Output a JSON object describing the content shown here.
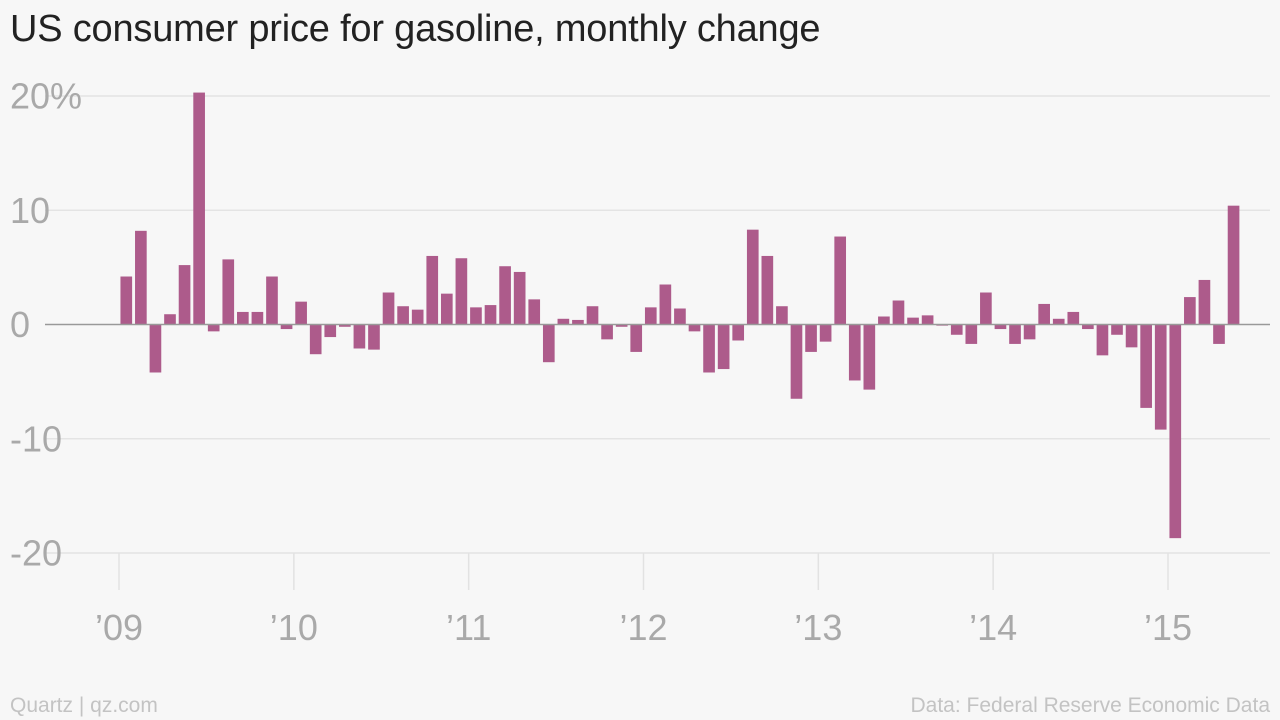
{
  "chart_data": {
    "type": "bar",
    "title": "US consumer price for gasoline, monthly change",
    "xlabel": "",
    "ylabel": "",
    "color": "#ad5b8b",
    "ylim": [
      -20,
      20
    ],
    "yticks": [
      20,
      10,
      0,
      -10,
      -20
    ],
    "ytick_labels": [
      "20%",
      "10",
      "0",
      "-10",
      "-20"
    ],
    "xticks": [
      {
        "label": "’09",
        "date": "2009-01"
      },
      {
        "label": "’10",
        "date": "2010-01"
      },
      {
        "label": "’11",
        "date": "2011-01"
      },
      {
        "label": "’12",
        "date": "2012-01"
      },
      {
        "label": "’13",
        "date": "2013-01"
      },
      {
        "label": "’14",
        "date": "2014-01"
      },
      {
        "label": "’15",
        "date": "2015-01"
      }
    ],
    "grid": true,
    "series": [
      {
        "dates": [
          "2009-01",
          "2009-02",
          "2009-03",
          "2009-04",
          "2009-05",
          "2009-06",
          "2009-07",
          "2009-08",
          "2009-09",
          "2009-10",
          "2009-11",
          "2009-12",
          "2010-01",
          "2010-02",
          "2010-03",
          "2010-04",
          "2010-05",
          "2010-06",
          "2010-07",
          "2010-08",
          "2010-09",
          "2010-10",
          "2010-11",
          "2010-12",
          "2011-01",
          "2011-02",
          "2011-03",
          "2011-04",
          "2011-05",
          "2011-06",
          "2011-07",
          "2011-08",
          "2011-09",
          "2011-10",
          "2011-11",
          "2011-12",
          "2012-01",
          "2012-02",
          "2012-03",
          "2012-04",
          "2012-05",
          "2012-06",
          "2012-07",
          "2012-08",
          "2012-09",
          "2012-10",
          "2012-11",
          "2012-12",
          "2013-01",
          "2013-02",
          "2013-03",
          "2013-04",
          "2013-05",
          "2013-06",
          "2013-07",
          "2013-08",
          "2013-09",
          "2013-10",
          "2013-11",
          "2013-12",
          "2014-01",
          "2014-02",
          "2014-03",
          "2014-04",
          "2014-05",
          "2014-06",
          "2014-07",
          "2014-08",
          "2014-09",
          "2014-10",
          "2014-11",
          "2014-12",
          "2015-01",
          "2015-02",
          "2015-03",
          "2015-04",
          "2015-05"
        ],
        "values": [
          4.2,
          8.2,
          -4.2,
          0.9,
          5.2,
          20.3,
          -0.6,
          5.7,
          1.1,
          1.1,
          4.2,
          -0.4,
          2.0,
          -2.6,
          -1.1,
          -0.2,
          -2.1,
          -2.2,
          2.8,
          1.6,
          1.3,
          6.0,
          2.7,
          5.8,
          1.5,
          1.7,
          5.1,
          4.6,
          2.2,
          -3.3,
          0.5,
          0.4,
          1.6,
          -1.3,
          -0.2,
          -2.4,
          1.5,
          3.5,
          1.4,
          -0.6,
          -4.2,
          -3.9,
          -1.4,
          8.3,
          6.0,
          1.6,
          -6.5,
          -2.4,
          -1.5,
          7.7,
          -4.9,
          -5.7,
          0.7,
          2.1,
          0.6,
          0.8,
          -0.1,
          -0.9,
          -1.7,
          2.8,
          -0.4,
          -1.7,
          -1.3,
          1.8,
          0.5,
          1.1,
          -0.4,
          -2.7,
          -0.9,
          -2.0,
          -7.3,
          -9.2,
          -18.7,
          2.4,
          3.9,
          -1.7,
          10.4
        ]
      }
    ]
  },
  "footer": {
    "credit": "Quartz | qz.com",
    "source": "Data: Federal Reserve Economic Data"
  }
}
